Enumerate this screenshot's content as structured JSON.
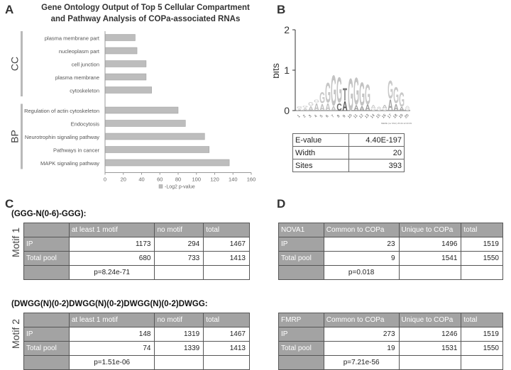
{
  "panels": {
    "a": "A",
    "b": "B",
    "c": "C",
    "d": "D"
  },
  "chart_data": {
    "type": "bar",
    "orientation": "horizontal",
    "title_line1": "Gene Ontology Output of Top 5 Cellular Compartment",
    "title_line2": "and Pathway Analysis of COPa-associated RNAs",
    "groups": [
      {
        "label": "CC",
        "categories": [
          "plasma membrane part",
          "nucleoplasm part",
          "cell junction",
          "plasma membrane",
          "cytoskeleton"
        ],
        "values": [
          33,
          35,
          45,
          45,
          51
        ]
      },
      {
        "label": "BP",
        "categories": [
          "Regulation of actin cytoskeleton",
          "Endocytosis",
          "Neurotrophin signaling pathway",
          "Pathways in cancer",
          "MAPK signaling pathway"
        ],
        "values": [
          80,
          88,
          109,
          114,
          136
        ]
      }
    ],
    "xticks": [
      "0",
      "20",
      "40",
      "60",
      "80",
      "100",
      "120",
      "140",
      "160"
    ],
    "xlim": [
      0,
      160
    ],
    "xlabel": "-Log2 p-value",
    "bar_color": "#bdbdbd"
  },
  "logo": {
    "ylabel": "bits",
    "yticks": [
      "2",
      "1",
      "0"
    ],
    "positions": [
      "1",
      "2",
      "3",
      "4",
      "5",
      "6",
      "7",
      "8",
      "9",
      "10",
      "11",
      "12",
      "13",
      "14",
      "15",
      "16",
      "17",
      "18",
      "19",
      "20"
    ],
    "footer": "MEME (no SSC) 25.09.12 00:39",
    "table": {
      "rows": [
        {
          "label": "E-value",
          "value": "4.40E-197"
        },
        {
          "label": "Width",
          "value": "20"
        },
        {
          "label": "Sites",
          "value": "393"
        }
      ]
    }
  },
  "motif1": {
    "side_label": "Motif 1",
    "title": "(GGG-N(0-6)-GGG):",
    "headers": [
      "",
      "at least 1 motif",
      "no motif",
      "total"
    ],
    "rows": [
      {
        "label": "IP",
        "a": "1173",
        "b": "294",
        "c": "1467"
      },
      {
        "label": "Total pool",
        "a": "680",
        "b": "733",
        "c": "1413"
      }
    ],
    "pvalue": "p=8.24e-71"
  },
  "motif2": {
    "side_label": "Motif 2",
    "title": "(DWGG(N)(0-2)DWGG(N)(0-2)DWGG(N)(0-2)DWGG:",
    "headers": [
      "",
      "at least 1 motif",
      "no motif",
      "total"
    ],
    "rows": [
      {
        "label": "IP",
        "a": "148",
        "b": "1319",
        "c": "1467"
      },
      {
        "label": "Total pool",
        "a": "74",
        "b": "1339",
        "c": "1413"
      }
    ],
    "pvalue": "p=1.51e-06"
  },
  "nova1": {
    "headers": [
      "NOVA1",
      "Common to COPa",
      "Unique to COPa",
      "total"
    ],
    "rows": [
      {
        "label": "IP",
        "a": "23",
        "b": "1496",
        "c": "1519"
      },
      {
        "label": "Total pool",
        "a": "9",
        "b": "1541",
        "c": "1550"
      }
    ],
    "pvalue": "p=0.018"
  },
  "fmrp": {
    "headers": [
      "FMRP",
      "Common to COPa",
      "Unique to COPa",
      "total"
    ],
    "rows": [
      {
        "label": "IP",
        "a": "273",
        "b": "1246",
        "c": "1519"
      },
      {
        "label": "Total pool",
        "a": "19",
        "b": "1531",
        "c": "1550"
      }
    ],
    "pvalue": "p=7.21e-56"
  }
}
